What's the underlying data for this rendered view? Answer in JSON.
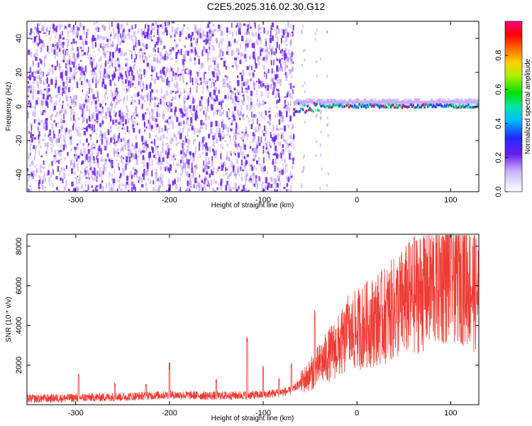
{
  "figure_title": "C2E5.2025.316.02.30.G12",
  "colors": {
    "spectrum_low": "#8f55ff",
    "spectrum_mid": "#6a1bf0",
    "snr_line": "#f03a32",
    "ridge_low": "#0060ff",
    "ridge_mid": "#00e070",
    "ridge_high": "#ff1010"
  },
  "chart_data": [
    {
      "type": "heatmap",
      "title": "C2E5.2025.316.02.30.G12",
      "xlabel": "Height of straight line (km)",
      "ylabel": "Frequency (Hz)",
      "xlim": [
        -352,
        130
      ],
      "ylim": [
        -50,
        50
      ],
      "x_ticks": [
        -300,
        -200,
        -100,
        0,
        100
      ],
      "y_ticks": [
        -40,
        -20,
        0,
        20,
        40
      ],
      "colorbar": {
        "label": "Normalized spectral amplitude",
        "range": [
          0,
          1
        ],
        "ticks": [
          0.0,
          0.2,
          0.4,
          0.6,
          0.8
        ],
        "tick_labels": [
          "0.0",
          "0.2",
          "0.4",
          "0.6",
          "0.8"
        ],
        "colormap": "rainbow"
      },
      "regions": {
        "noise_band": {
          "x": [
            -352,
            -68
          ],
          "frequency": [
            -50,
            50
          ],
          "amplitude": "0.05-0.2"
        },
        "signal_line": {
          "x": [
            -68,
            130
          ],
          "frequency": 0,
          "amplitude": "0.3-1.0"
        }
      }
    },
    {
      "type": "line",
      "xlabel": "Height of straight line (km)",
      "ylabel": "SNR (10 * v/v)",
      "xlim": [
        -352,
        130
      ],
      "ylim": [
        0,
        8600
      ],
      "x_ticks": [
        -300,
        -200,
        -100,
        0,
        100
      ],
      "y_ticks": [
        2000,
        4000,
        6000,
        8000
      ],
      "series": [
        {
          "x": [
            -350,
            -300,
            -250,
            -200,
            -150,
            -100,
            -70,
            -50,
            -30,
            0,
            30,
            60,
            90,
            110,
            130
          ],
          "values": [
            300,
            350,
            400,
            500,
            450,
            500,
            700,
            1500,
            2500,
            3800,
            4500,
            5500,
            6500,
            6800,
            5500
          ]
        }
      ],
      "spikes": [
        {
          "x": -297,
          "value": 1600
        },
        {
          "x": -258,
          "value": 1200
        },
        {
          "x": -225,
          "value": 1100
        },
        {
          "x": -200,
          "value": 2200
        },
        {
          "x": -150,
          "value": 1300
        },
        {
          "x": -117,
          "value": 3500
        },
        {
          "x": -100,
          "value": 2000
        },
        {
          "x": -83,
          "value": 1400
        },
        {
          "x": -70,
          "value": 2300
        },
        {
          "x": -45,
          "value": 5000
        },
        {
          "x": -10,
          "value": 5600
        }
      ]
    }
  ]
}
